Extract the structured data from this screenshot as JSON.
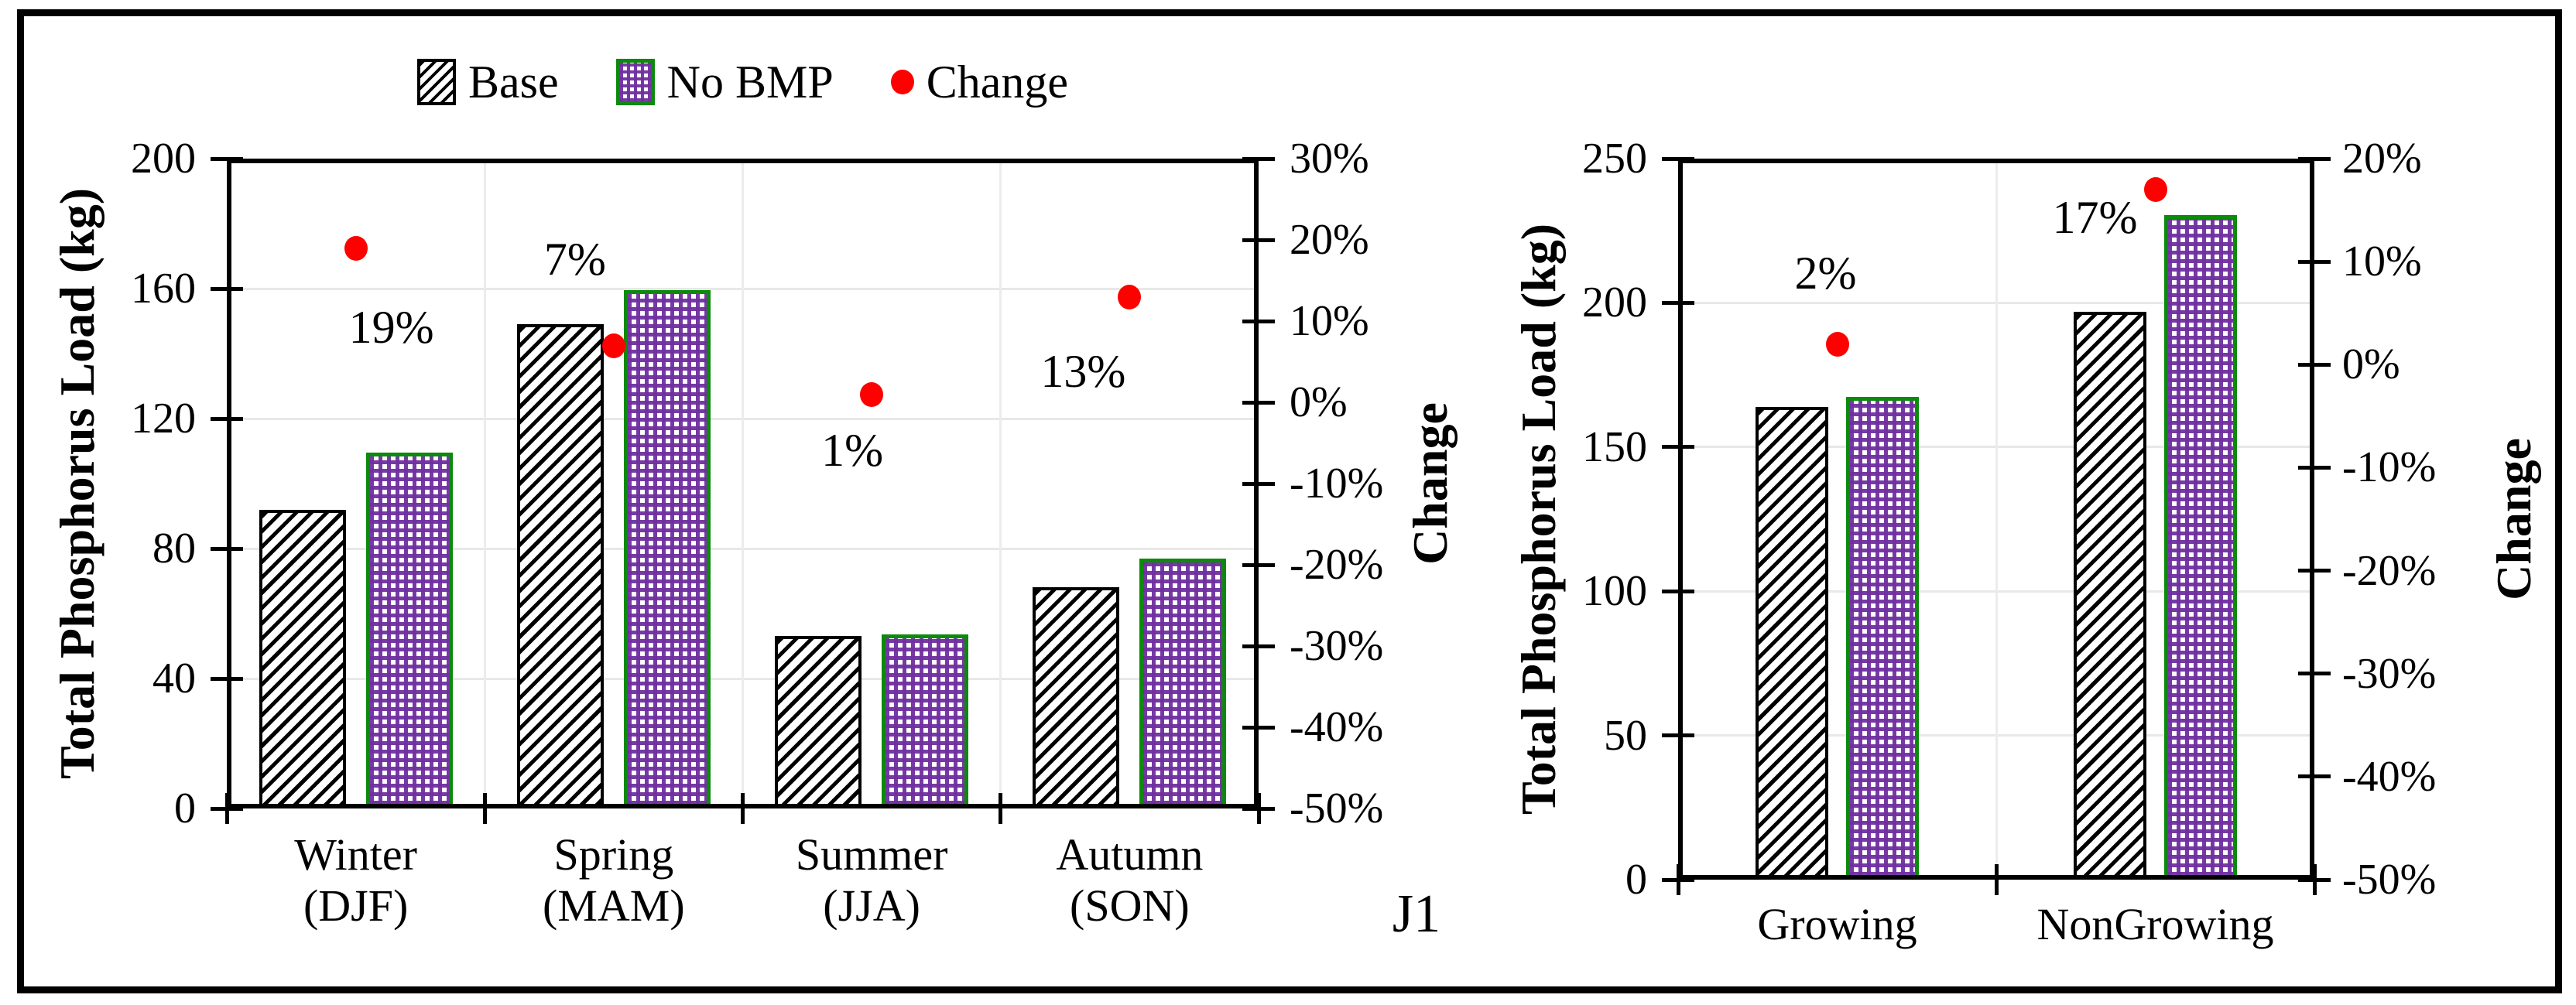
{
  "figure": {
    "legend": {
      "items": [
        {
          "label": "Base",
          "swatch": "hatch"
        },
        {
          "label": "No BMP",
          "swatch": "check"
        },
        {
          "label": "Change",
          "swatch": "dot"
        }
      ]
    },
    "colors": {
      "base_pattern": "#000000",
      "no_bmp_fill": "#7030A0",
      "no_bmp_border": "#0C8A0C",
      "change_dot": "#FF0000",
      "axis": "#000000",
      "gridline": "#E8E8E8"
    },
    "annotation": "J1"
  },
  "chart_data": [
    {
      "type": "bar",
      "title": "",
      "categories": [
        "Winter (DJF)",
        "Spring (MAM)",
        "Summer (JJA)",
        "Autumn (SON)"
      ],
      "category_lines": [
        [
          "Winter",
          "(DJF)"
        ],
        [
          "Spring",
          "(MAM)"
        ],
        [
          "Summer",
          "(JJA)"
        ],
        [
          "Autumn",
          "(SON)"
        ]
      ],
      "ylabel_left": "Total Phosphorus Load (kg)",
      "ylabel_right": "Change",
      "ylim_left": [
        0,
        200
      ],
      "yticks_left": [
        0,
        40,
        80,
        120,
        160,
        200
      ],
      "ylim_right": [
        -50,
        30
      ],
      "yticks_right": [
        30,
        20,
        10,
        0,
        -10,
        -20,
        -30,
        -40,
        -50
      ],
      "grid": true,
      "legend_position": "top",
      "series": [
        {
          "name": "Base",
          "values": [
            92,
            149,
            53,
            68
          ]
        },
        {
          "name": "No BMP",
          "values": [
            109.5,
            159.5,
            53.5,
            77
          ]
        }
      ],
      "change_series": {
        "name": "Change",
        "values_pct": [
          19,
          7,
          1,
          13
        ],
        "labels": [
          "19%",
          "7%",
          "1%",
          "13%"
        ]
      },
      "annotation": "J1"
    },
    {
      "type": "bar",
      "title": "",
      "categories": [
        "Growing",
        "NonGrowing"
      ],
      "ylabel_left": "Total Phosphorus Load (kg)",
      "ylabel_right": "Change",
      "ylim_left": [
        0,
        250
      ],
      "yticks_left": [
        0,
        50,
        100,
        150,
        200,
        250
      ],
      "ylim_right": [
        -50,
        20
      ],
      "yticks_right": [
        20,
        10,
        0,
        -10,
        -20,
        -30,
        -40,
        -50
      ],
      "grid": true,
      "legend_position": "none",
      "series": [
        {
          "name": "Base",
          "values": [
            164,
            197
          ]
        },
        {
          "name": "No BMP",
          "values": [
            167.5,
            230.5
          ]
        }
      ],
      "change_series": {
        "name": "Change",
        "values_pct": [
          2,
          17
        ],
        "labels": [
          "2%",
          "17%"
        ]
      }
    }
  ]
}
